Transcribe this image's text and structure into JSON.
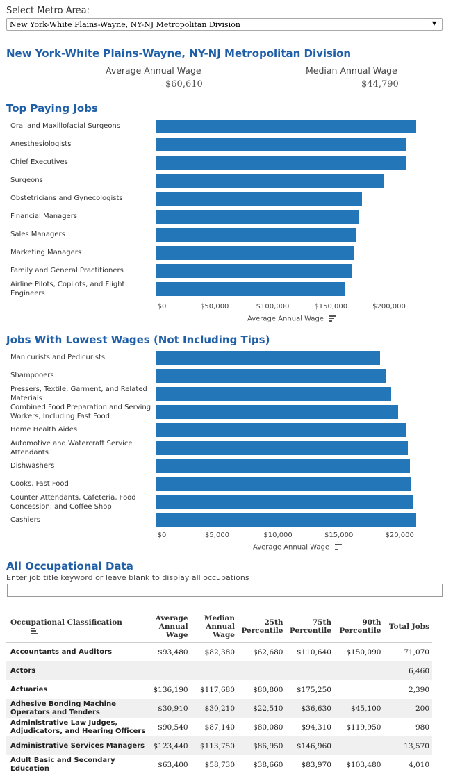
{
  "selector": {
    "label": "Select Metro Area:",
    "value": "New York-White Plains-Wayne, NY-NJ Metropolitan Division"
  },
  "summary": {
    "title": "New York-White Plains-Wayne, NY-NJ Metropolitan Division",
    "avg_label": "Average Annual Wage",
    "avg_value": "$60,610",
    "median_label": "Median Annual Wage",
    "median_value": "$44,790"
  },
  "colors": {
    "bar": "#2377b9",
    "title": "#1f5fa8"
  },
  "chart_data": [
    {
      "type": "bar",
      "orientation": "horizontal",
      "title": "Top Paying Jobs",
      "xlabel": "Average Annual Wage",
      "categories": [
        "Oral and Maxillofacial Surgeons",
        "Anesthesiologists",
        "Chief Executives",
        "Surgeons",
        "Obstetricians and Gynecologists",
        "Financial Managers",
        "Sales Managers",
        "Marketing Managers",
        "Family and General Practitioners",
        "Airline Pilots, Copilots, and Flight Engineers"
      ],
      "values": [
        223500,
        215000,
        214500,
        195000,
        176500,
        173500,
        171500,
        169500,
        167500,
        162500
      ],
      "xlim": [
        0,
        240000
      ],
      "ticks": [
        0,
        50000,
        100000,
        150000,
        200000
      ],
      "tick_labels": [
        "$0",
        "$50,000",
        "$100,000",
        "$150,000",
        "$200,000"
      ]
    },
    {
      "type": "bar",
      "orientation": "horizontal",
      "title": "Jobs With Lowest Wages (Not Including Tips)",
      "xlabel": "Average Annual Wage",
      "categories": [
        "Manicurists and Pedicurists",
        "Shampooers",
        "Pressers, Textile, Garment, and Related Materials",
        "Combined Food Preparation and Serving Workers, Including Fast Food",
        "Home Health Aides",
        "Automotive and Watercraft Service Attendants",
        "Dishwashers",
        "Cooks, Fast Food",
        "Counter Attendants, Cafeteria, Food Concession, and Coffee Shop",
        "Cashiers"
      ],
      "values": [
        18400,
        18850,
        19300,
        19850,
        20500,
        20650,
        20850,
        20950,
        21100,
        21350
      ],
      "xlim": [
        0,
        22500
      ],
      "ticks": [
        0,
        5000,
        10000,
        15000,
        20000
      ],
      "tick_labels": [
        "$0",
        "$5,000",
        "$10,000",
        "$15,000",
        "$20,000"
      ]
    }
  ],
  "occupational": {
    "title": "All Occupational Data",
    "filter_label": "Enter job title keyword or leave blank to display all occupations",
    "filter_value": "",
    "headers": [
      "Occupational Classification",
      "Average Annual Wage",
      "Median Annual Wage",
      "25th Percentile",
      "75th Percentile",
      "90th Percentile",
      "Total Jobs"
    ],
    "rows": [
      [
        "Accountants and Auditors",
        "$93,480",
        "$82,380",
        "$62,680",
        "$110,640",
        "$150,090",
        "71,070"
      ],
      [
        "Actors",
        "",
        "",
        "",
        "",
        "",
        "6,460"
      ],
      [
        "Actuaries",
        "$136,190",
        "$117,680",
        "$80,800",
        "$175,250",
        "",
        "2,390"
      ],
      [
        "Adhesive Bonding Machine Operators and Tenders",
        "$30,910",
        "$30,210",
        "$22,510",
        "$36,630",
        "$45,100",
        "200"
      ],
      [
        "Administrative Law Judges, Adjudicators, and Hearing Officers",
        "$90,540",
        "$87,140",
        "$80,080",
        "$94,310",
        "$119,950",
        "980"
      ],
      [
        "Administrative Services Managers",
        "$123,440",
        "$113,750",
        "$86,950",
        "$146,960",
        "",
        "13,570"
      ],
      [
        "Adult Basic and Secondary Education",
        "$63,400",
        "$58,730",
        "$38,660",
        "$83,970",
        "$103,480",
        "4,010"
      ]
    ]
  }
}
